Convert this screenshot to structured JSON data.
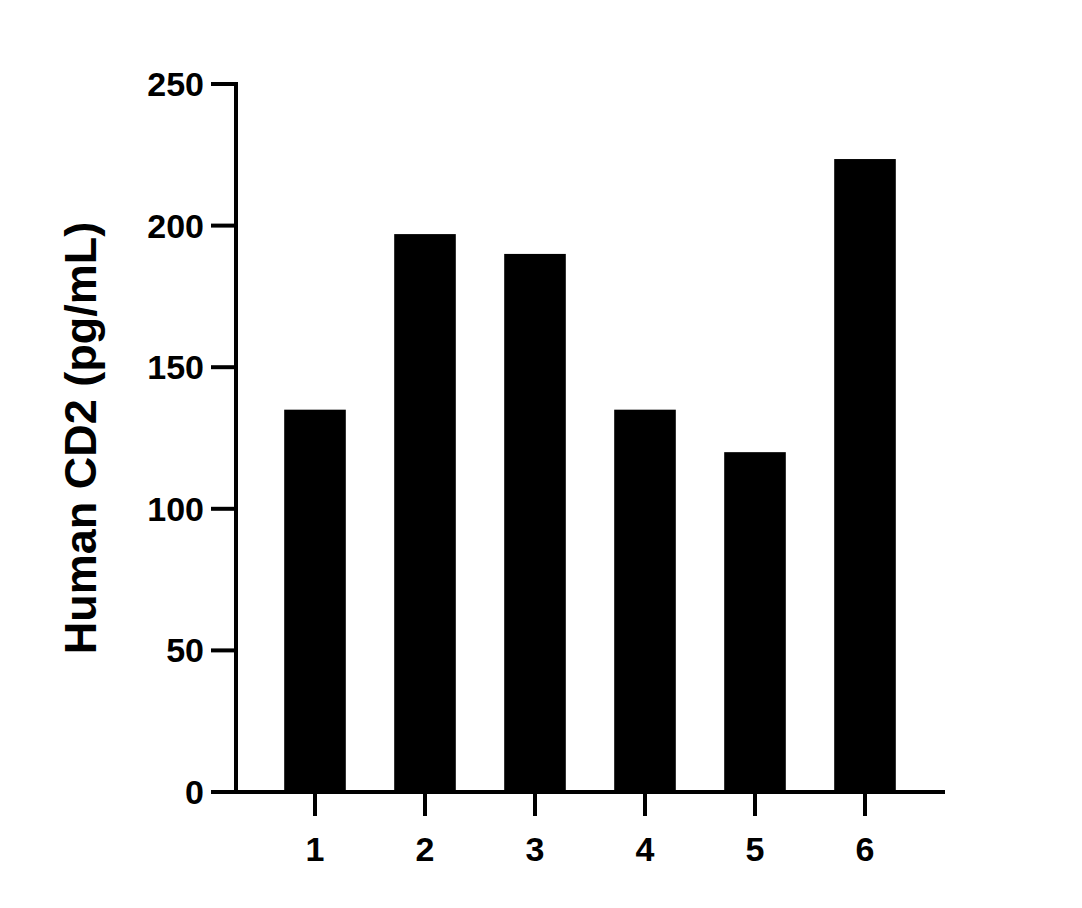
{
  "chart_data": {
    "type": "bar",
    "y_label": "Human CD2 (pg/mL)",
    "categories": [
      "1",
      "2",
      "3",
      "4",
      "5",
      "6"
    ],
    "values": [
      135,
      197,
      190,
      135,
      120,
      223.5
    ],
    "color": "#000000",
    "ylim": [
      0,
      250
    ],
    "yticks": [
      0,
      50,
      100,
      150,
      200,
      250
    ],
    "grid": false
  }
}
